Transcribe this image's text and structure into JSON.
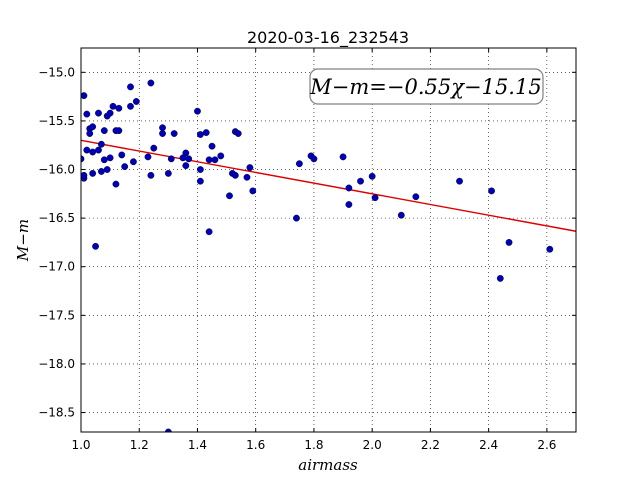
{
  "chart_data": {
    "type": "scatter",
    "title": "2020-03-16_232543",
    "xlabel": "airmass",
    "ylabel": "M−m",
    "xlim": [
      1.0,
      2.7
    ],
    "ylim": [
      -18.7,
      -14.75
    ],
    "y_inverted": true,
    "xticks": [
      "1.0",
      "1.2",
      "1.4",
      "1.6",
      "1.8",
      "2.0",
      "2.2",
      "2.4",
      "2.6"
    ],
    "yticks": [
      "−15.0",
      "−15.5",
      "−16.0",
      "−16.5",
      "−17.0",
      "−17.5",
      "−18.0",
      "−18.5"
    ],
    "xtick_values": [
      1.0,
      1.2,
      1.4,
      1.6,
      1.8,
      2.0,
      2.2,
      2.4,
      2.6
    ],
    "ytick_values": [
      -15.0,
      -15.5,
      -16.0,
      -16.5,
      -17.0,
      -17.5,
      -18.0,
      -18.5
    ],
    "grid": true,
    "annotation": "M−m=−0.55χ−15.15",
    "fit": {
      "slope": -0.55,
      "intercept": -15.15,
      "x_range": [
        1.0,
        2.7
      ],
      "color": "#dd0000"
    },
    "point_color": "#0000bb",
    "points": [
      [
        1.0,
        -15.89
      ],
      [
        1.01,
        -16.09
      ],
      [
        1.01,
        -16.06
      ],
      [
        1.01,
        -15.24
      ],
      [
        1.02,
        -15.43
      ],
      [
        1.02,
        -15.8
      ],
      [
        1.03,
        -15.58
      ],
      [
        1.03,
        -15.63
      ],
      [
        1.04,
        -15.56
      ],
      [
        1.04,
        -15.82
      ],
      [
        1.04,
        -16.04
      ],
      [
        1.05,
        -16.79
      ],
      [
        1.06,
        -15.42
      ],
      [
        1.06,
        -15.8
      ],
      [
        1.07,
        -16.02
      ],
      [
        1.07,
        -15.74
      ],
      [
        1.08,
        -15.6
      ],
      [
        1.08,
        -15.9
      ],
      [
        1.09,
        -16.0
      ],
      [
        1.09,
        -15.45
      ],
      [
        1.1,
        -15.42
      ],
      [
        1.1,
        -15.88
      ],
      [
        1.11,
        -15.35
      ],
      [
        1.12,
        -16.15
      ],
      [
        1.12,
        -15.6
      ],
      [
        1.13,
        -15.6
      ],
      [
        1.13,
        -15.37
      ],
      [
        1.14,
        -15.85
      ],
      [
        1.15,
        -15.97
      ],
      [
        1.17,
        -15.35
      ],
      [
        1.17,
        -15.15
      ],
      [
        1.18,
        -15.92
      ],
      [
        1.19,
        -15.3
      ],
      [
        1.23,
        -15.87
      ],
      [
        1.24,
        -15.11
      ],
      [
        1.24,
        -16.06
      ],
      [
        1.25,
        -15.78
      ],
      [
        1.28,
        -15.57
      ],
      [
        1.28,
        -15.63
      ],
      [
        1.3,
        -16.04
      ],
      [
        1.31,
        -15.89
      ],
      [
        1.32,
        -15.63
      ],
      [
        1.3,
        -18.7
      ],
      [
        1.35,
        -15.88
      ],
      [
        1.36,
        -15.96
      ],
      [
        1.36,
        -15.83
      ],
      [
        1.37,
        -15.89
      ],
      [
        1.4,
        -15.4
      ],
      [
        1.41,
        -15.64
      ],
      [
        1.41,
        -16.12
      ],
      [
        1.41,
        -16.0
      ],
      [
        1.43,
        -15.62
      ],
      [
        1.44,
        -16.64
      ],
      [
        1.44,
        -15.9
      ],
      [
        1.45,
        -15.76
      ],
      [
        1.46,
        -15.9
      ],
      [
        1.48,
        -15.86
      ],
      [
        1.51,
        -16.27
      ],
      [
        1.52,
        -16.04
      ],
      [
        1.53,
        -16.06
      ],
      [
        1.53,
        -15.61
      ],
      [
        1.54,
        -15.63
      ],
      [
        1.57,
        -16.08
      ],
      [
        1.58,
        -15.98
      ],
      [
        1.59,
        -16.22
      ],
      [
        1.74,
        -16.5
      ],
      [
        1.75,
        -15.94
      ],
      [
        1.79,
        -15.86
      ],
      [
        1.8,
        -15.89
      ],
      [
        1.9,
        -15.87
      ],
      [
        1.92,
        -16.19
      ],
      [
        1.92,
        -16.36
      ],
      [
        1.96,
        -16.12
      ],
      [
        2.0,
        -16.07
      ],
      [
        2.01,
        -16.29
      ],
      [
        2.1,
        -16.47
      ],
      [
        2.15,
        -16.28
      ],
      [
        2.3,
        -16.12
      ],
      [
        2.41,
        -16.22
      ],
      [
        2.44,
        -17.12
      ],
      [
        2.47,
        -16.75
      ],
      [
        2.61,
        -16.82
      ]
    ]
  }
}
